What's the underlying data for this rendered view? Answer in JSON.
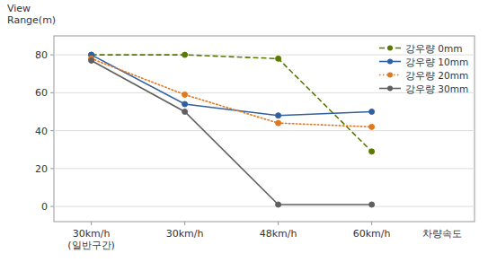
{
  "chart_data": {
    "type": "line",
    "xlabel": "차량속도",
    "ylabel": "View\nRange(m)",
    "categories": [
      "30km/h\n(일반구간)",
      "30km/h",
      "48km/h",
      "60km/h"
    ],
    "series": [
      {
        "name": "강우량 0mm",
        "color": "#5a7a00",
        "line_style": "dashed",
        "marker": "circle",
        "values": [
          80,
          80,
          78,
          29
        ]
      },
      {
        "name": "강우량 10mm",
        "color": "#3060a0",
        "line_style": "solid",
        "marker": "circle",
        "values": [
          80,
          54,
          48,
          50
        ]
      },
      {
        "name": "강우량 20mm",
        "color": "#e07820",
        "line_style": "dotted",
        "marker": "circle",
        "values": [
          78,
          59,
          44,
          42
        ]
      },
      {
        "name": "강우량 30mm",
        "color": "#606060",
        "line_style": "solid",
        "marker": "circle",
        "values": [
          77,
          50,
          1,
          1
        ]
      }
    ],
    "ylim": [
      -8,
      90
    ],
    "yticks": [
      0,
      20,
      40,
      60,
      80
    ],
    "grid": true,
    "legend": "upper right"
  }
}
